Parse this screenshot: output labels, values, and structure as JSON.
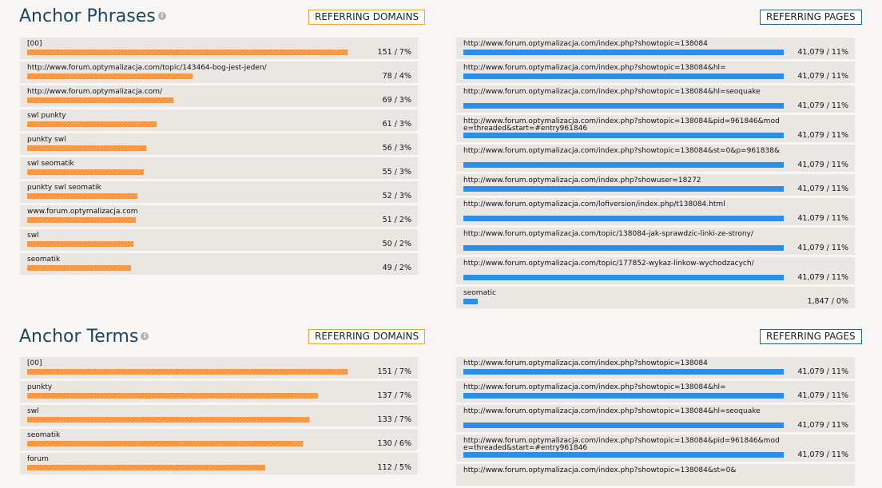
{
  "sections": [
    {
      "title": "Anchor Phrases",
      "info_icon": "info-icon",
      "referring_domains_label": "REFERRING DOMAINS",
      "referring_pages_label": "REFERRING PAGES",
      "domains": [
        {
          "label": "[00]",
          "value": "151 / 7%",
          "fill": 1.0
        },
        {
          "label": "http://www.forum.optymalizacja.com/topic/143464-bog-jest-jeden/",
          "value": "78 / 4%",
          "fill": 0.515
        },
        {
          "label": "http://www.forum.optymalizacja.com/",
          "value": "69 / 3%",
          "fill": 0.457
        },
        {
          "label": "swl punkty",
          "value": "61 / 3%",
          "fill": 0.404
        },
        {
          "label": "punkty swl",
          "value": "56 / 3%",
          "fill": 0.371
        },
        {
          "label": "swl seomatik",
          "value": "55 / 3%",
          "fill": 0.364
        },
        {
          "label": "punkty swl seomatik",
          "value": "52 / 3%",
          "fill": 0.344
        },
        {
          "label": "www.forum.optymalizacja.com",
          "value": "51 / 2%",
          "fill": 0.338
        },
        {
          "label": "swl",
          "value": "50 / 2%",
          "fill": 0.331
        },
        {
          "label": "seomatik",
          "value": "49 / 2%",
          "fill": 0.325
        }
      ],
      "pages": [
        {
          "label": "http://www.forum.optymalizacja.com/index.php?showtopic=138084",
          "value": "41,079 / 11%",
          "fill": 1.0
        },
        {
          "label": "http://www.forum.optymalizacja.com/index.php?showtopic=138084&hl=",
          "value": "41,079 / 11%",
          "fill": 1.0
        },
        {
          "label": "http://www.forum.optymalizacja.com/index.php?showtopic=138084&hl=seoquake",
          "value": "41,079 / 11%",
          "fill": 1.0
        },
        {
          "label": "http://www.forum.optymalizacja.com/index.php?showtopic=138084&pid=961846&mode=threaded&start=#entry961846",
          "value": "41,079 / 11%",
          "fill": 1.0
        },
        {
          "label": "http://www.forum.optymalizacja.com/index.php?showtopic=138084&st=0&p=961838&",
          "value": "41,079 / 11%",
          "fill": 1.0
        },
        {
          "label": "http://www.forum.optymalizacja.com/index.php?showuser=18272",
          "value": "41,079 / 11%",
          "fill": 1.0
        },
        {
          "label": "http://www.forum.optymalizacja.com/lofiversion/index.php/t138084.html",
          "value": "41,079 / 11%",
          "fill": 1.0
        },
        {
          "label": "http://www.forum.optymalizacja.com/topic/138084-jak-sprawdzic-linki-ze-strony/",
          "value": "41,079 / 11%",
          "fill": 1.0
        },
        {
          "label": "http://www.forum.optymalizacja.com/topic/177852-wykaz-linkow-wychodzacych/",
          "value": "41,079 / 11%",
          "fill": 1.0
        },
        {
          "label": "seomatic",
          "value": "1,847 / 0%",
          "fill": 0.045
        }
      ]
    },
    {
      "title": "Anchor Terms",
      "info_icon": "info-icon",
      "referring_domains_label": "REFERRING DOMAINS",
      "referring_pages_label": "REFERRING PAGES",
      "domains": [
        {
          "label": "[00]",
          "value": "151 / 7%",
          "fill": 1.0
        },
        {
          "label": "punkty",
          "value": "137 / 7%",
          "fill": 0.907
        },
        {
          "label": "swl",
          "value": "133 / 7%",
          "fill": 0.881
        },
        {
          "label": "seomatik",
          "value": "130 / 6%",
          "fill": 0.861
        },
        {
          "label": "forum",
          "value": "112 / 5%",
          "fill": 0.742
        }
      ],
      "pages": [
        {
          "label": "http://www.forum.optymalizacja.com/index.php?showtopic=138084",
          "value": "41,079 / 11%",
          "fill": 1.0
        },
        {
          "label": "http://www.forum.optymalizacja.com/index.php?showtopic=138084&hl=",
          "value": "41,079 / 11%",
          "fill": 1.0
        },
        {
          "label": "http://www.forum.optymalizacja.com/index.php?showtopic=138084&hl=seoquake",
          "value": "41,079 / 11%",
          "fill": 1.0
        },
        {
          "label": "http://www.forum.optymalizacja.com/index.php?showtopic=138084&pid=961846&mode=threaded&start=#entry961846",
          "value": "41,079 / 11%",
          "fill": 1.0
        },
        {
          "label": "http://www.forum.optymalizacja.com/index.php?showtopic=138084&st=0&",
          "value": "",
          "fill": 0
        }
      ]
    }
  ],
  "colors": {
    "title": "#1e4660",
    "domain_bar": "#f2913a",
    "page_bar": "#2b8fe8",
    "domain_button_border": "#f0a23c",
    "page_button_border": "#2c5f86",
    "row_background": "#eae7e3",
    "page_background": "#f7f6f4"
  }
}
